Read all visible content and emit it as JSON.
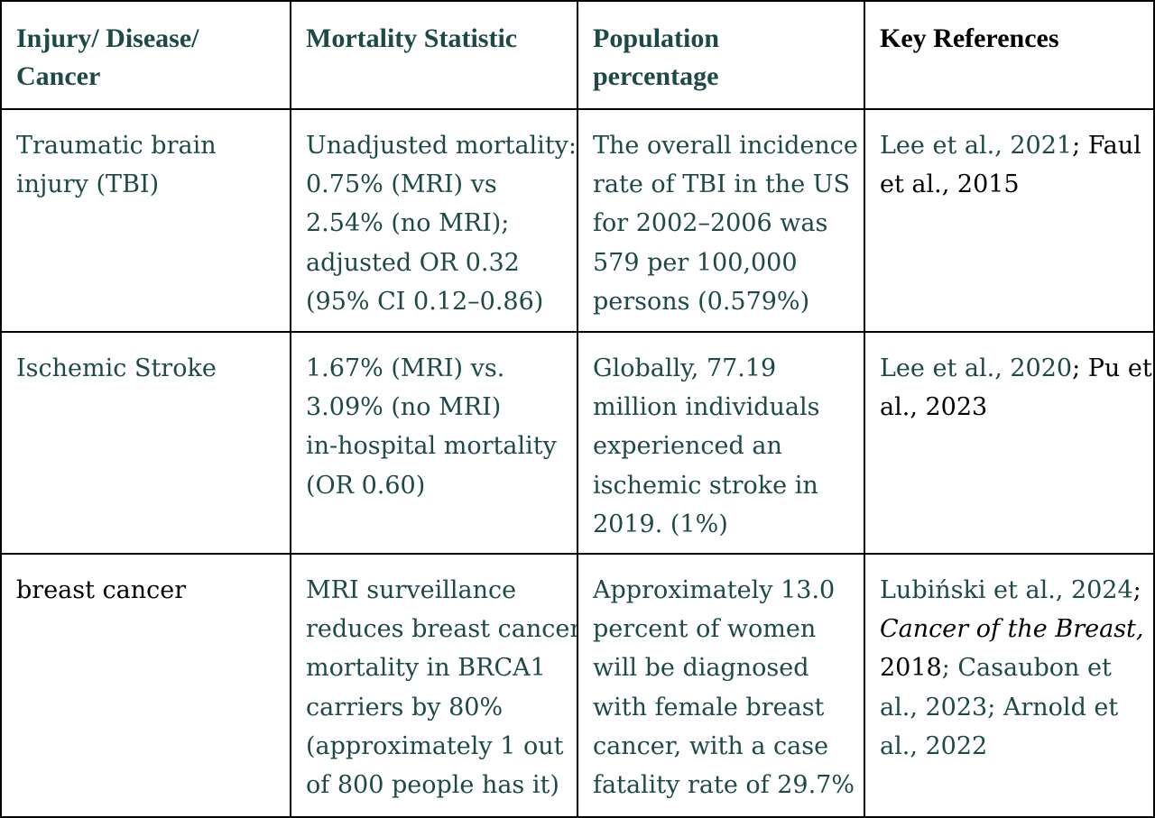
{
  "headers": [
    "Injury/ Disease/ Cancer",
    "Mortality Statistic",
    "Population percentage",
    "Key References"
  ],
  "header_lines": [
    [
      "Injury/ Disease/",
      "Cancer"
    ],
    [
      "Mortality Statistic"
    ],
    [
      "Population",
      "percentage"
    ],
    [
      "Key References"
    ]
  ],
  "rows": [
    {
      "condition_lines": [
        "Traumatic brain",
        "injury (TBI)"
      ],
      "mortality_lines": [
        "Unadjusted mortality:",
        "0.75% (MRI) vs",
        "2.54% (no MRI);",
        "adjusted OR 0.32",
        "(95% CI 0.12–0.86)"
      ],
      "population_lines": [
        "The overall incidence",
        "rate of TBI in the US",
        "for 2002–2006 was",
        "579 per 100,000",
        "persons (0.579%)"
      ],
      "ref_parts": [
        "Lee et al., 2021",
        "; Faul",
        "et al., 2015"
      ]
    },
    {
      "condition_lines": [
        "Ischemic Stroke"
      ],
      "mortality_lines": [
        "1.67% (MRI) vs.",
        "3.09% (no MRI)",
        "in-hospital mortality",
        "(OR 0.60)"
      ],
      "population_lines": [
        "Globally, 77.19",
        "million individuals",
        "experienced an",
        "ischemic stroke in",
        "2019. (1%)"
      ],
      "ref_parts": [
        "Lee et al., 2020",
        "; Pu et",
        "al., 2023"
      ]
    },
    {
      "condition_lines": [
        "breast cancer"
      ],
      "mortality_lines": [
        "MRI surveillance",
        "reduces breast cancer",
        "mortality in BRCA1",
        "carriers by 80%",
        "(approximately 1 out",
        "of 800 people has it)"
      ],
      "population_lines": [
        "Approximately 13.0",
        "percent of women",
        "will be diagnosed",
        "with female breast",
        "cancer, with a case",
        "fatality rate of 29.7%"
      ],
      "ref_parts": [
        "Lubiński et al., 2024",
        ";",
        "Cancer of the Breast,",
        "2018",
        "; Casaubon et",
        "al., 2023",
        "; Arnold et",
        "al., 2022"
      ]
    }
  ],
  "colors": {
    "teal_text": "#1d4a47",
    "black_text": "#000000",
    "border": "#000000"
  }
}
